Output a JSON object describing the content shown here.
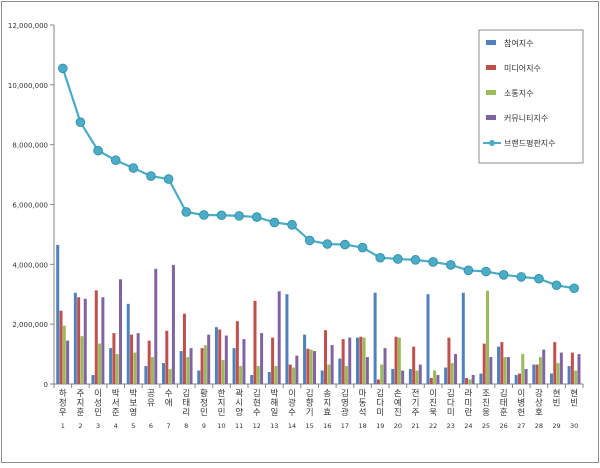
{
  "chart_data": {
    "type": "bar",
    "title": "",
    "xlabel": "",
    "ylabel": "",
    "ylim": [
      0,
      12000000
    ],
    "yticks": [
      0,
      2000000,
      4000000,
      6000000,
      8000000,
      10000000,
      12000000
    ],
    "ytick_labels": [
      "0",
      "2,000,000",
      "4,000,000",
      "6,000,000",
      "8,000,000",
      "10,000,000",
      "12,000,000"
    ],
    "grid": false,
    "legend_position": "top-right",
    "categories": [
      "하정우",
      "주지훈",
      "이성민",
      "박서준",
      "박보영",
      "공유",
      "수애",
      "김태리",
      "황정민",
      "한지민",
      "곽시양",
      "김현수",
      "박해일",
      "이광수",
      "김향기",
      "송지효",
      "김영광",
      "마동석",
      "김다미",
      "손예진",
      "전기주",
      "이진욱",
      "김다미",
      "라미란",
      "조진웅",
      "김태훈",
      "이병헌",
      "강상호",
      "현빈",
      "현빈"
    ],
    "x_numbers": [
      "1",
      "2",
      "3",
      "4",
      "5",
      "6",
      "7",
      "8",
      "9",
      "10",
      "11",
      "12",
      "13",
      "14",
      "15",
      "16",
      "17",
      "18",
      "19",
      "20",
      "21",
      "22",
      "23",
      "24",
      "25",
      "26",
      "27",
      "28",
      "29",
      "30"
    ],
    "series": [
      {
        "name": "참여지수",
        "type": "bar",
        "color": "#4f81bd",
        "values": [
          4650000,
          3050000,
          300000,
          1200000,
          2680000,
          600000,
          700000,
          1100000,
          450000,
          1900000,
          1200000,
          300000,
          400000,
          3000000,
          1650000,
          450000,
          850000,
          1550000,
          3050000,
          500000,
          500000,
          3000000,
          550000,
          3050000,
          350000,
          1250000,
          300000,
          650000,
          350000,
          600000
        ]
      },
      {
        "name": "미디어지수",
        "type": "bar",
        "color": "#c0504d",
        "values": [
          2450000,
          2900000,
          3130000,
          1700000,
          1650000,
          1450000,
          1780000,
          2350000,
          1200000,
          1820000,
          2100000,
          2780000,
          1550000,
          650000,
          1180000,
          1800000,
          1500000,
          1580000,
          150000,
          1580000,
          1250000,
          200000,
          1550000,
          200000,
          1350000,
          1400000,
          350000,
          650000,
          1400000,
          1050000
        ]
      },
      {
        "name": "소통지수",
        "type": "bar",
        "color": "#9bbb59",
        "values": [
          1950000,
          1600000,
          1350000,
          1000000,
          1050000,
          900000,
          500000,
          900000,
          1300000,
          800000,
          600000,
          600000,
          600000,
          550000,
          1150000,
          650000,
          600000,
          1550000,
          650000,
          1550000,
          450000,
          450000,
          700000,
          150000,
          3120000,
          900000,
          1000000,
          900000,
          700000,
          450000
        ]
      },
      {
        "name": "커뮤니티지수",
        "type": "bar",
        "color": "#8064a2",
        "values": [
          1450000,
          2850000,
          2900000,
          3500000,
          1700000,
          3850000,
          3980000,
          1200000,
          1650000,
          1620000,
          1500000,
          1700000,
          3100000,
          950000,
          1100000,
          1300000,
          1550000,
          900000,
          1200000,
          450000,
          650000,
          300000,
          1000000,
          300000,
          900000,
          900000,
          500000,
          1150000,
          1050000,
          1000000
        ]
      },
      {
        "name": "브랜드평판지수",
        "type": "line",
        "color": "#4bacc6",
        "values": [
          10550000,
          8750000,
          7800000,
          7480000,
          7220000,
          6950000,
          6850000,
          5750000,
          5650000,
          5640000,
          5620000,
          5580000,
          5400000,
          5320000,
          4800000,
          4680000,
          4660000,
          4560000,
          4220000,
          4180000,
          4150000,
          4080000,
          3980000,
          3800000,
          3760000,
          3650000,
          3580000,
          3520000,
          3300000,
          3200000
        ]
      }
    ]
  }
}
